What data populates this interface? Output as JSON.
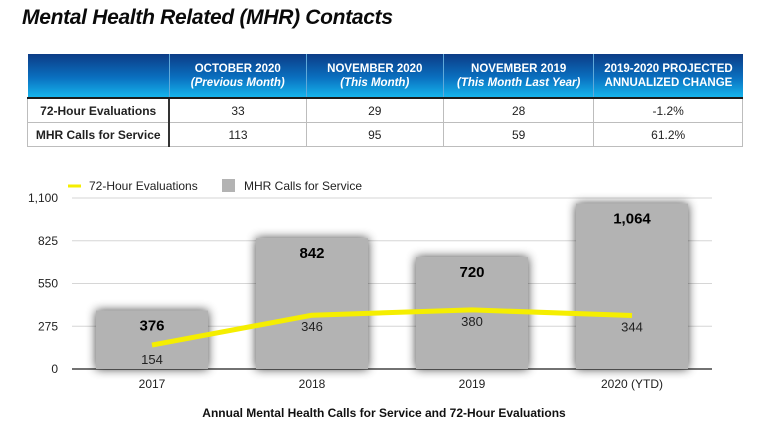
{
  "title": "Mental Health Related (MHR) Contacts",
  "table": {
    "columns": [
      {
        "label": "",
        "sub": ""
      },
      {
        "label": "OCTOBER 2020",
        "sub": "(Previous Month)"
      },
      {
        "label": "NOVEMBER 2020",
        "sub": "(This Month)"
      },
      {
        "label": "NOVEMBER 2019",
        "sub": "(This Month Last Year)"
      },
      {
        "label": "2019-2020 PROJECTED",
        "sub": "ANNUALIZED CHANGE"
      }
    ],
    "rows": [
      {
        "label": "72-Hour Evaluations",
        "cells": [
          "33",
          "29",
          "28",
          "-1.2%"
        ]
      },
      {
        "label": "MHR Calls for Service",
        "cells": [
          "113",
          "95",
          "59",
          "61.2%"
        ]
      }
    ]
  },
  "colors": {
    "bar": "#b3b3b3",
    "line": "#f5ee00",
    "header_dark": "#0c3c86",
    "header_light": "#15b4ec"
  },
  "chart_data": {
    "type": "bar",
    "title": "Annual Mental Health Calls for Service and 72-Hour Evaluations",
    "categories": [
      "2017",
      "2018",
      "2019",
      "2020 (YTD)"
    ],
    "series": [
      {
        "name": "MHR Calls for Service",
        "type": "bar",
        "values": [
          376,
          842,
          720,
          1064
        ]
      },
      {
        "name": "72-Hour Evaluations",
        "type": "line",
        "values": [
          154,
          346,
          380,
          344
        ]
      }
    ],
    "yticks": [
      0,
      275,
      550,
      825,
      1100
    ],
    "ytick_labels": [
      "0",
      "275",
      "550",
      "825",
      "1,100"
    ],
    "bar_labels": [
      "376",
      "842",
      "720",
      "1,064"
    ],
    "line_labels": [
      "154",
      "346",
      "380",
      "344"
    ],
    "ylim": [
      0,
      1100
    ],
    "xlabel": "",
    "ylabel": "",
    "grid": true,
    "legend_position": "top-left",
    "legend": [
      {
        "label": "72-Hour Evaluations",
        "kind": "line"
      },
      {
        "label": "MHR Calls for Service",
        "kind": "bar"
      }
    ]
  }
}
